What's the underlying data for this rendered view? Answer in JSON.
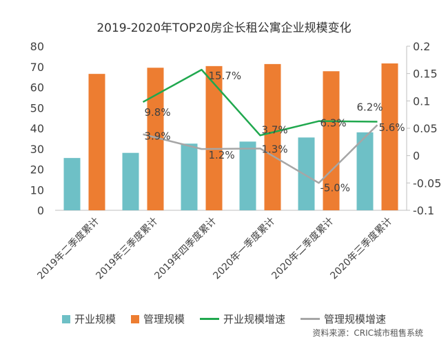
{
  "chart_data": {
    "type": "bar",
    "title": "2019-2020年TOP20房企长租公寓企业规模变化",
    "categories": [
      "2019年二季度累计",
      "2019年三季度累计",
      "2019年四季度累计",
      "2020年一季度累计",
      "2020年二季度累计",
      "2020年三季度累计"
    ],
    "series": [
      {
        "name": "开业规模",
        "type": "bar",
        "axis": "left",
        "color": "#6ec0c6",
        "values": [
          25.5,
          28,
          32.5,
          33.5,
          35.5,
          38
        ]
      },
      {
        "name": "管理规模",
        "type": "bar",
        "axis": "left",
        "color": "#ed7d31",
        "values": [
          66.5,
          69.5,
          70.3,
          71.3,
          67.8,
          71.6
        ]
      },
      {
        "name": "开业规模增速",
        "type": "line",
        "axis": "right",
        "color": "#20a84e",
        "values": [
          null,
          0.098,
          0.157,
          0.037,
          0.063,
          0.062
        ],
        "labels": [
          "",
          "9.8%",
          "15.7%",
          "3.7%",
          "6.3%",
          "6.2%"
        ]
      },
      {
        "name": "管理规模增速",
        "type": "line",
        "axis": "right",
        "color": "#a6a6a6",
        "values": [
          null,
          0.039,
          0.012,
          0.013,
          -0.05,
          0.056
        ],
        "labels": [
          "",
          "3.9%",
          "1.2%",
          "1.3%",
          "-5.0%",
          "5.6%"
        ]
      }
    ],
    "ylim_left": [
      0,
      80
    ],
    "yticks_left": [
      "0",
      "10",
      "20",
      "30",
      "40",
      "50",
      "60",
      "70",
      "80"
    ],
    "ylim_right": [
      -0.1,
      0.2
    ],
    "yticks_right": [
      "-0.1",
      "-0.05",
      "0",
      "0.05",
      "0.1",
      "0.15",
      "0.2"
    ],
    "grid": false,
    "legend_position": "bottom"
  },
  "source": "资料来源：CRIC城市租售系统"
}
